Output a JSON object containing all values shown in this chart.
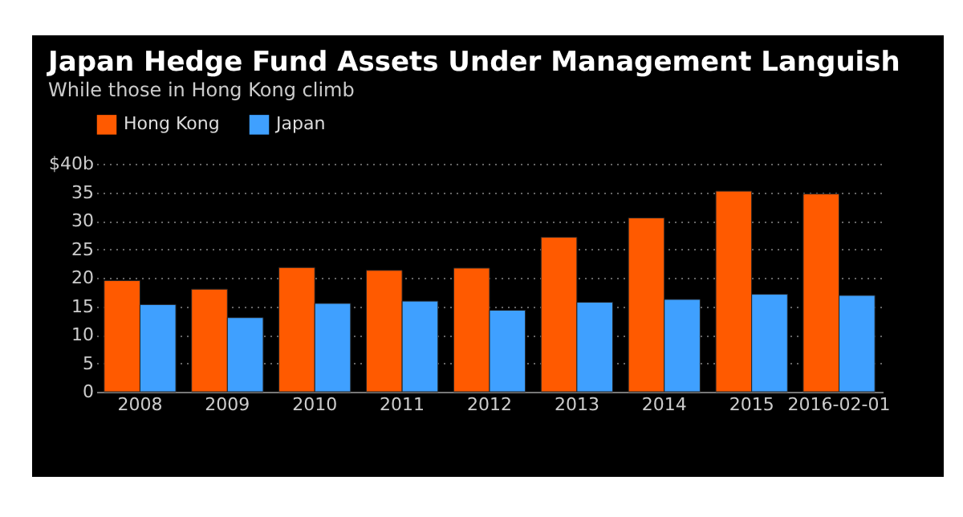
{
  "chart_data": {
    "type": "bar",
    "title": "Japan Hedge Fund Assets Under Management Languish",
    "subtitle": "While those in Hong Kong climb",
    "categories": [
      "2008",
      "2009",
      "2010",
      "2011",
      "2012",
      "2013",
      "2014",
      "2015",
      "2016-02-01"
    ],
    "series": [
      {
        "name": "Hong Kong",
        "color": "#ff5a00",
        "values": [
          19.5,
          18.0,
          21.8,
          21.3,
          21.7,
          27.1,
          30.5,
          35.2,
          34.7
        ]
      },
      {
        "name": "Japan",
        "color": "#3fa0ff",
        "values": [
          15.3,
          13.0,
          15.5,
          15.9,
          14.3,
          15.7,
          16.2,
          17.1,
          16.9
        ]
      }
    ],
    "ylim": [
      0,
      40
    ],
    "yticks": [
      0,
      5,
      10,
      15,
      20,
      25,
      30,
      35,
      {
        "value": 40,
        "label": "$40b"
      }
    ],
    "grid": "y",
    "legend": "top left"
  }
}
